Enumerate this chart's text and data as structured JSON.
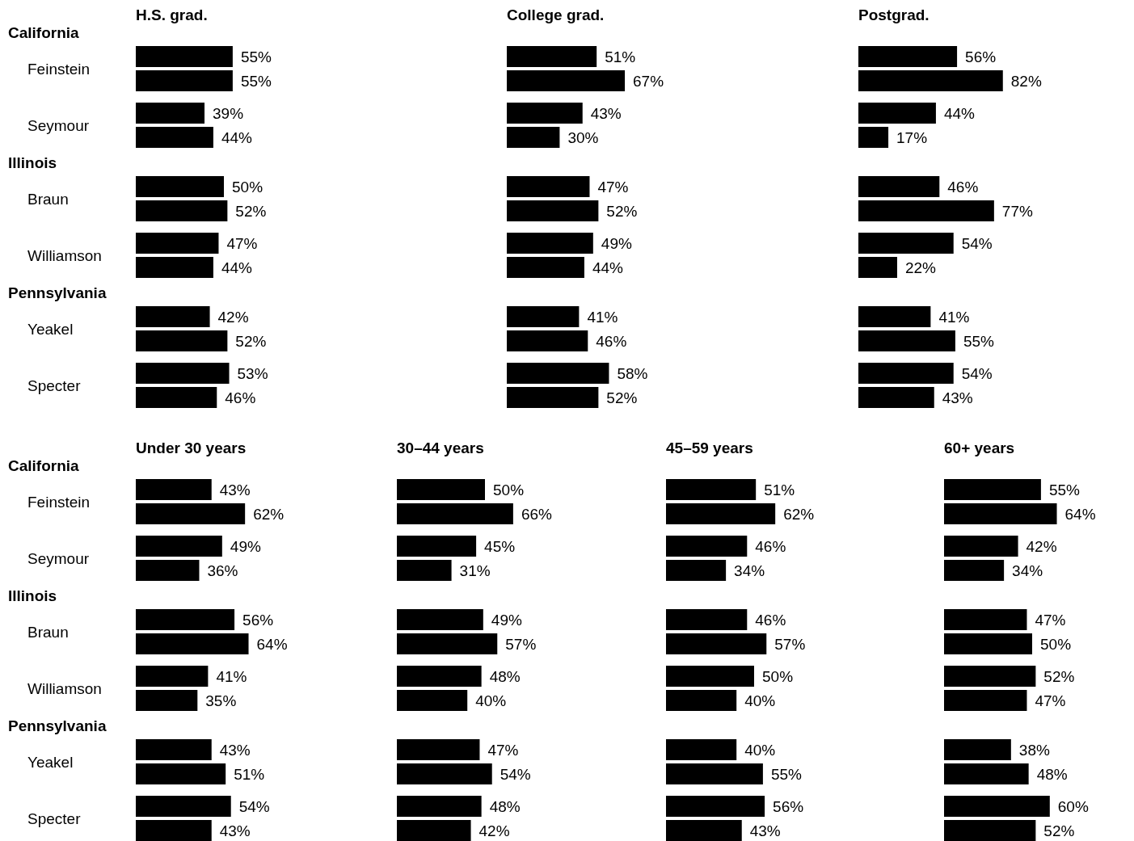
{
  "chart_data": [
    {
      "type": "bar",
      "orientation": "horizontal",
      "title": "H.S. grad.",
      "categories": [
        "Feinstein",
        "Seymour",
        "Braun",
        "Williamson",
        "Yeakel",
        "Specter"
      ],
      "tick_labels": "y",
      "annotations": [
        "California",
        "Illinois",
        "Pennsylvania"
      ],
      "series": [
        {
          "color": "#000000",
          "values": [
            55,
            39,
            50,
            47,
            42,
            53
          ],
          "value_labels": [
            "55%",
            "39%",
            "50%",
            "47%",
            "42%",
            "53%"
          ]
        },
        {
          "color": "#000000",
          "values": [
            55,
            44,
            52,
            44,
            52,
            46
          ],
          "value_labels": [
            "55%",
            "44%",
            "52%",
            "44%",
            "52%",
            "46%"
          ]
        }
      ]
    },
    {
      "type": "bar",
      "orientation": "horizontal",
      "title": "College grad.",
      "categories": [
        null,
        null,
        null,
        null,
        null,
        null
      ],
      "tick_labels": false,
      "series": [
        {
          "color": "#000000",
          "values": [
            51,
            43,
            47,
            49,
            41,
            58
          ],
          "value_labels": [
            "51%",
            "43%",
            "47%",
            "49%",
            "41%",
            "58%"
          ]
        },
        {
          "color": "#000000",
          "values": [
            67,
            30,
            52,
            44,
            46,
            52
          ],
          "value_labels": [
            "67%",
            "30%",
            "52%",
            "44%",
            "46%",
            "52%"
          ]
        }
      ]
    },
    {
      "type": "bar",
      "orientation": "horizontal",
      "title": "Postgrad.",
      "categories": [
        null,
        null,
        null,
        null,
        null,
        null
      ],
      "tick_labels": false,
      "series": [
        {
          "color": "#000000",
          "values": [
            56,
            44,
            46,
            54,
            41,
            54
          ],
          "value_labels": [
            "56%",
            "44%",
            "46%",
            "54%",
            "41%",
            "54%"
          ]
        },
        {
          "color": "#000000",
          "values": [
            82,
            17,
            77,
            22,
            55,
            43
          ],
          "value_labels": [
            "82%",
            "17%",
            "77%",
            "22%",
            "55%",
            "43%"
          ]
        }
      ]
    },
    {
      "type": "bar",
      "orientation": "horizontal",
      "title": "Under 30 years",
      "categories": [
        "Feinstein",
        "Seymour",
        "Braun",
        "Williamson",
        "Yeakel",
        "Specter"
      ],
      "tick_labels": "y",
      "annotations": [
        "California",
        "Illinois",
        "Pennsylvania"
      ],
      "series": [
        {
          "color": "#000000",
          "values": [
            43,
            49,
            56,
            41,
            43,
            54
          ],
          "value_labels": [
            "43%",
            "49%",
            "56%",
            "41%",
            "43%",
            "54%"
          ]
        },
        {
          "color": "#000000",
          "values": [
            62,
            36,
            64,
            35,
            51,
            43
          ],
          "value_labels": [
            "62%",
            "36%",
            "64%",
            "35%",
            "51%",
            "43%"
          ]
        }
      ]
    },
    {
      "type": "bar",
      "orientation": "horizontal",
      "title": "30–44 years",
      "categories": [
        null,
        null,
        null,
        null,
        null,
        null
      ],
      "tick_labels": false,
      "series": [
        {
          "color": "#000000",
          "values": [
            50,
            45,
            49,
            48,
            47,
            48
          ],
          "value_labels": [
            "50%",
            "45%",
            "49%",
            "48%",
            "47%",
            "48%"
          ]
        },
        {
          "color": "#000000",
          "values": [
            66,
            31,
            57,
            40,
            54,
            42
          ],
          "value_labels": [
            "66%",
            "31%",
            "57%",
            "40%",
            "54%",
            "42%"
          ]
        }
      ]
    },
    {
      "type": "bar",
      "orientation": "horizontal",
      "title": "45–59 years",
      "categories": [
        null,
        null,
        null,
        null,
        null,
        null
      ],
      "tick_labels": false,
      "series": [
        {
          "color": "#000000",
          "values": [
            51,
            46,
            46,
            50,
            40,
            56
          ],
          "value_labels": [
            "51%",
            "46%",
            "46%",
            "50%",
            "40%",
            "56%"
          ]
        },
        {
          "color": "#000000",
          "values": [
            62,
            34,
            57,
            40,
            55,
            43
          ],
          "value_labels": [
            "62%",
            "34%",
            "57%",
            "40%",
            "55%",
            "43%"
          ]
        }
      ]
    },
    {
      "type": "bar",
      "orientation": "horizontal",
      "title": "60+ years",
      "categories": [
        null,
        null,
        null,
        null,
        null,
        null
      ],
      "tick_labels": false,
      "series": [
        {
          "color": "#000000",
          "values": [
            55,
            42,
            47,
            52,
            38,
            60
          ],
          "value_labels": [
            "55%",
            "42%",
            "47%",
            "52%",
            "38%",
            "60%"
          ]
        },
        {
          "color": "#000000",
          "values": [
            64,
            34,
            50,
            47,
            48,
            52
          ],
          "value_labels": [
            "64%",
            "34%",
            "50%",
            "47%",
            "48%",
            "52%"
          ]
        }
      ]
    }
  ]
}
